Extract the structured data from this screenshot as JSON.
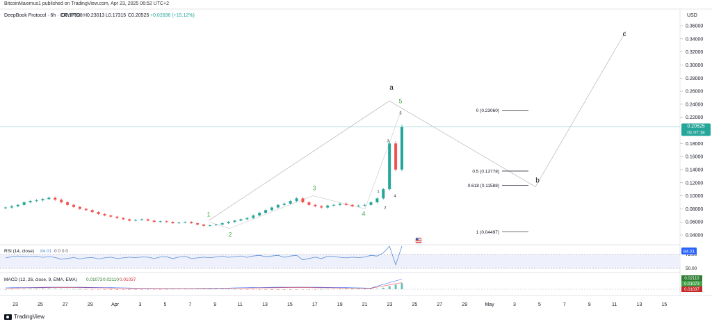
{
  "caption": "BitcoinMaximus1 published on TradingView.com, Apr 23, 2025 06:52 UTC+2",
  "header": {
    "symbol": "DeepBook Protocol · 6h · CRYPTO",
    "ohlc": [
      "O0.17828",
      "H0.23013",
      "L0.17315",
      "C0.20525",
      "+0.02696 (+15.12%)"
    ]
  },
  "currency": "USD",
  "price_axis": [
    "0.36000",
    "0.34000",
    "0.32000",
    "0.30000",
    "0.28000",
    "0.26000",
    "0.24000",
    "0.22000",
    "0.18000",
    "0.16000",
    "0.14000",
    "0.12000",
    "0.10000",
    "0.08000",
    "0.06000",
    "0.04000"
  ],
  "current_price": {
    "value": "0.20525",
    "countdown": "01:07:18"
  },
  "rsi_panel": {
    "label": "RSI (14, close)",
    "value": "84.01",
    "extra": "0 0 0 0",
    "axis": [
      "72.00",
      "50.00"
    ],
    "badge": "84.01"
  },
  "macd_panel": {
    "label": "MACD (12, 26, close, 9, EMA, EMA)",
    "v1": "0.01073",
    "v2": "0.02110",
    "v3": "0.01037",
    "badges": [
      "0.02110",
      "0.01073",
      "0.01037"
    ]
  },
  "x_axis": [
    "23",
    "25",
    "27",
    "29",
    "Apr",
    "3",
    "5",
    "7",
    "9",
    "11",
    "13",
    "15",
    "17",
    "19",
    "21",
    "23",
    "25",
    "27",
    "29",
    "May",
    "3",
    "5",
    "7",
    "9",
    "11",
    "13",
    "15"
  ],
  "wave_labels": {
    "major": [
      "1",
      "2",
      "3",
      "4",
      "5"
    ],
    "minor": [
      "1",
      "2",
      "3",
      "4",
      "5"
    ],
    "abc": [
      "a",
      "b",
      "c"
    ]
  },
  "fib_levels": [
    {
      "label": "0 (0.23060)",
      "value": 0.2306
    },
    {
      "label": "0.5 (0.13778)",
      "value": 0.13778
    },
    {
      "label": "0.618 (0.11588)",
      "value": 0.11588
    },
    {
      "label": "1 (0.04497)",
      "value": 0.04497
    }
  ],
  "footer": "TradingView",
  "colors": {
    "up": "#26a69a",
    "down": "#ef5350",
    "wave_green": "#4caf50",
    "rsi": "#5b8fd6",
    "price_line": "#26a69a"
  },
  "chart_data": {
    "type": "candlestick",
    "timeframe": "6h",
    "ylim": [
      0.02,
      0.37
    ],
    "price_series": [
      0.082,
      0.084,
      0.086,
      0.09,
      0.092,
      0.093,
      0.095,
      0.097,
      0.094,
      0.09,
      0.086,
      0.083,
      0.08,
      0.078,
      0.075,
      0.072,
      0.07,
      0.068,
      0.066,
      0.064,
      0.062,
      0.063,
      0.064,
      0.062,
      0.06,
      0.061,
      0.06,
      0.058,
      0.059,
      0.06,
      0.058,
      0.056,
      0.054,
      0.055,
      0.056,
      0.058,
      0.06,
      0.062,
      0.064,
      0.066,
      0.07,
      0.074,
      0.078,
      0.082,
      0.086,
      0.088,
      0.092,
      0.096,
      0.09,
      0.086,
      0.084,
      0.082,
      0.085,
      0.086,
      0.088,
      0.086,
      0.084,
      0.085,
      0.086,
      0.09,
      0.096,
      0.11,
      0.18,
      0.14,
      0.205
    ],
    "current_price": 0.20525,
    "waves": {
      "major_1": 0.062,
      "major_2": 0.05,
      "major_3": 0.1,
      "major_4": 0.08,
      "major_5": 0.2306,
      "b_target": 0.11588,
      "c_target": 0.36
    },
    "fib_levels": [
      0.2306,
      0.13778,
      0.11588,
      0.04497
    ],
    "rsi_last": 84.01,
    "macd": {
      "macd": 0.01073,
      "signal": 0.0211,
      "hist": 0.01037
    }
  }
}
